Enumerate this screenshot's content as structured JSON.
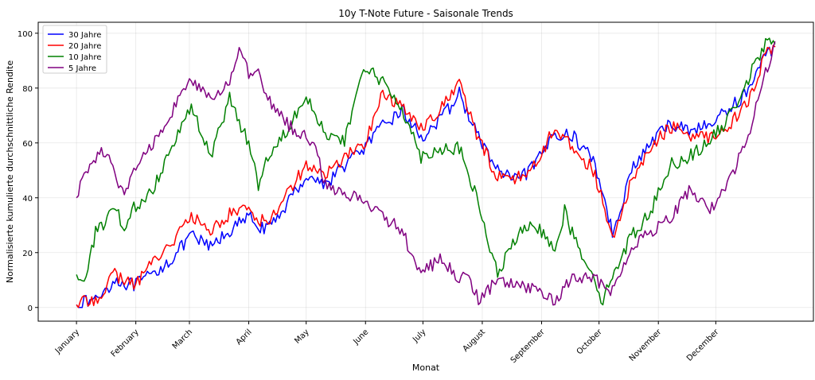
{
  "chart_data": {
    "type": "line",
    "title": "10y T-Note Future - Saisonale Trends",
    "xlabel": "Monat",
    "ylabel": "Normalisierte kumulierte durchschnittliche Rendite",
    "ylim": [
      -5,
      104
    ],
    "yticks": [
      0,
      20,
      40,
      60,
      80,
      100
    ],
    "xlim": [
      -20,
      385
    ],
    "month_labels": [
      "January",
      "February",
      "March",
      "April",
      "May",
      "June",
      "July",
      "August",
      "September",
      "October",
      "November",
      "December"
    ],
    "month_positions": [
      0,
      31,
      59,
      90,
      120,
      151,
      181,
      212,
      243,
      273,
      304,
      334
    ],
    "grid": true,
    "legend_position": "top-left",
    "series": [
      {
        "name": "30 Jahre",
        "color": "#0000ff",
        "points": [
          [
            0,
            1
          ],
          [
            10,
            3
          ],
          [
            20,
            10
          ],
          [
            30,
            8
          ],
          [
            40,
            12
          ],
          [
            50,
            18
          ],
          [
            60,
            26
          ],
          [
            70,
            22
          ],
          [
            80,
            28
          ],
          [
            90,
            33
          ],
          [
            95,
            30
          ],
          [
            100,
            28
          ],
          [
            110,
            38
          ],
          [
            120,
            48
          ],
          [
            130,
            45
          ],
          [
            140,
            52
          ],
          [
            150,
            58
          ],
          [
            160,
            66
          ],
          [
            170,
            72
          ],
          [
            180,
            62
          ],
          [
            190,
            68
          ],
          [
            200,
            78
          ],
          [
            210,
            62
          ],
          [
            220,
            50
          ],
          [
            230,
            46
          ],
          [
            240,
            52
          ],
          [
            250,
            64
          ],
          [
            260,
            62
          ],
          [
            270,
            54
          ],
          [
            275,
            42
          ],
          [
            280,
            27
          ],
          [
            290,
            50
          ],
          [
            300,
            60
          ],
          [
            310,
            67
          ],
          [
            320,
            65
          ],
          [
            330,
            66
          ],
          [
            340,
            72
          ],
          [
            350,
            78
          ],
          [
            360,
            92
          ],
          [
            365,
            95
          ]
        ]
      },
      {
        "name": "20 Jahre",
        "color": "#ff0000",
        "points": [
          [
            0,
            1
          ],
          [
            10,
            3
          ],
          [
            20,
            12
          ],
          [
            30,
            8
          ],
          [
            40,
            17
          ],
          [
            50,
            24
          ],
          [
            60,
            33
          ],
          [
            70,
            28
          ],
          [
            80,
            34
          ],
          [
            90,
            37
          ],
          [
            95,
            32
          ],
          [
            100,
            31
          ],
          [
            110,
            42
          ],
          [
            120,
            52
          ],
          [
            130,
            48
          ],
          [
            140,
            55
          ],
          [
            150,
            59
          ],
          [
            160,
            78
          ],
          [
            170,
            73
          ],
          [
            180,
            66
          ],
          [
            190,
            72
          ],
          [
            200,
            82
          ],
          [
            210,
            61
          ],
          [
            220,
            48
          ],
          [
            230,
            47
          ],
          [
            240,
            52
          ],
          [
            250,
            66
          ],
          [
            260,
            58
          ],
          [
            270,
            50
          ],
          [
            275,
            38
          ],
          [
            280,
            24
          ],
          [
            290,
            46
          ],
          [
            300,
            58
          ],
          [
            310,
            66
          ],
          [
            320,
            63
          ],
          [
            330,
            62
          ],
          [
            340,
            66
          ],
          [
            350,
            74
          ],
          [
            360,
            92
          ],
          [
            365,
            95
          ]
        ]
      },
      {
        "name": "10 Jahre",
        "color": "#008000",
        "points": [
          [
            0,
            12
          ],
          [
            5,
            10
          ],
          [
            10,
            28
          ],
          [
            15,
            30
          ],
          [
            20,
            37
          ],
          [
            25,
            28
          ],
          [
            30,
            36
          ],
          [
            40,
            43
          ],
          [
            50,
            60
          ],
          [
            60,
            73
          ],
          [
            70,
            55
          ],
          [
            80,
            76
          ],
          [
            90,
            60
          ],
          [
            95,
            45
          ],
          [
            100,
            55
          ],
          [
            110,
            65
          ],
          [
            120,
            78
          ],
          [
            130,
            63
          ],
          [
            140,
            60
          ],
          [
            150,
            88
          ],
          [
            160,
            82
          ],
          [
            170,
            73
          ],
          [
            180,
            55
          ],
          [
            190,
            58
          ],
          [
            200,
            58
          ],
          [
            210,
            38
          ],
          [
            215,
            24
          ],
          [
            220,
            12
          ],
          [
            230,
            26
          ],
          [
            240,
            30
          ],
          [
            250,
            22
          ],
          [
            255,
            35
          ],
          [
            260,
            25
          ],
          [
            270,
            12
          ],
          [
            275,
            2
          ],
          [
            280,
            12
          ],
          [
            290,
            26
          ],
          [
            300,
            35
          ],
          [
            310,
            52
          ],
          [
            320,
            55
          ],
          [
            330,
            60
          ],
          [
            340,
            68
          ],
          [
            350,
            82
          ],
          [
            360,
            96
          ],
          [
            365,
            96
          ]
        ]
      },
      {
        "name": "5 Jahre",
        "color": "#800080",
        "points": [
          [
            0,
            40
          ],
          [
            5,
            50
          ],
          [
            10,
            55
          ],
          [
            15,
            57
          ],
          [
            20,
            48
          ],
          [
            25,
            40
          ],
          [
            30,
            50
          ],
          [
            40,
            60
          ],
          [
            50,
            72
          ],
          [
            60,
            83
          ],
          [
            70,
            75
          ],
          [
            80,
            83
          ],
          [
            85,
            93
          ],
          [
            90,
            85
          ],
          [
            95,
            85
          ],
          [
            100,
            76
          ],
          [
            110,
            67
          ],
          [
            120,
            62
          ],
          [
            125,
            58
          ],
          [
            130,
            45
          ],
          [
            140,
            41
          ],
          [
            150,
            40
          ],
          [
            160,
            33
          ],
          [
            170,
            28
          ],
          [
            180,
            12
          ],
          [
            190,
            18
          ],
          [
            200,
            10
          ],
          [
            205,
            12
          ],
          [
            210,
            2
          ],
          [
            220,
            10
          ],
          [
            230,
            8
          ],
          [
            240,
            6
          ],
          [
            250,
            2
          ],
          [
            260,
            12
          ],
          [
            270,
            10
          ],
          [
            275,
            9
          ],
          [
            280,
            6
          ],
          [
            290,
            22
          ],
          [
            300,
            28
          ],
          [
            310,
            32
          ],
          [
            320,
            43
          ],
          [
            330,
            35
          ],
          [
            340,
            45
          ],
          [
            350,
            60
          ],
          [
            360,
            85
          ],
          [
            365,
            97
          ]
        ]
      }
    ]
  }
}
